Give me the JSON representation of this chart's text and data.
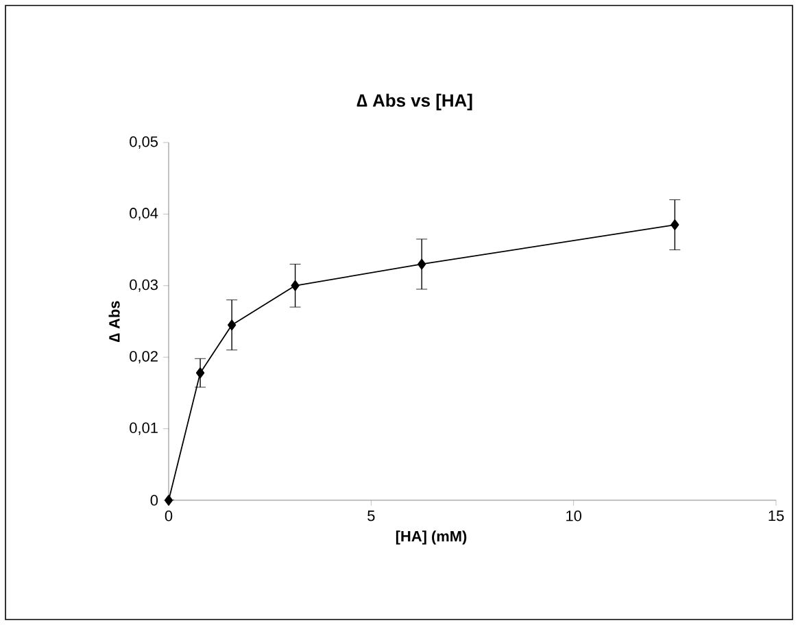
{
  "chart_data": {
    "type": "line",
    "title": "∆ Abs vs [HA]",
    "xlabel": "[HA] (mM)",
    "ylabel": "∆ Abs",
    "x": [
      0,
      0.78,
      1.56,
      3.125,
      6.25,
      12.5
    ],
    "values": [
      0,
      0.0178,
      0.0245,
      0.03,
      0.033,
      0.0385
    ],
    "errors": [
      null,
      0.002,
      0.0035,
      0.003,
      0.0035,
      0.0035
    ],
    "color": "#000000",
    "marker": "diamond",
    "line_style": "solid",
    "grid": false,
    "xlim": [
      0,
      15
    ],
    "xticks": [
      0,
      5,
      10,
      15
    ],
    "ylim": [
      0,
      0.05
    ],
    "yticks": [
      0,
      {
        "value": 0.01,
        "label": "0,01"
      },
      {
        "value": 0.02,
        "label": "0,02"
      },
      {
        "value": 0.03,
        "label": "0,03"
      },
      {
        "value": 0.04,
        "label": "0,04"
      },
      {
        "value": 0.05,
        "label": "0,05"
      }
    ]
  }
}
